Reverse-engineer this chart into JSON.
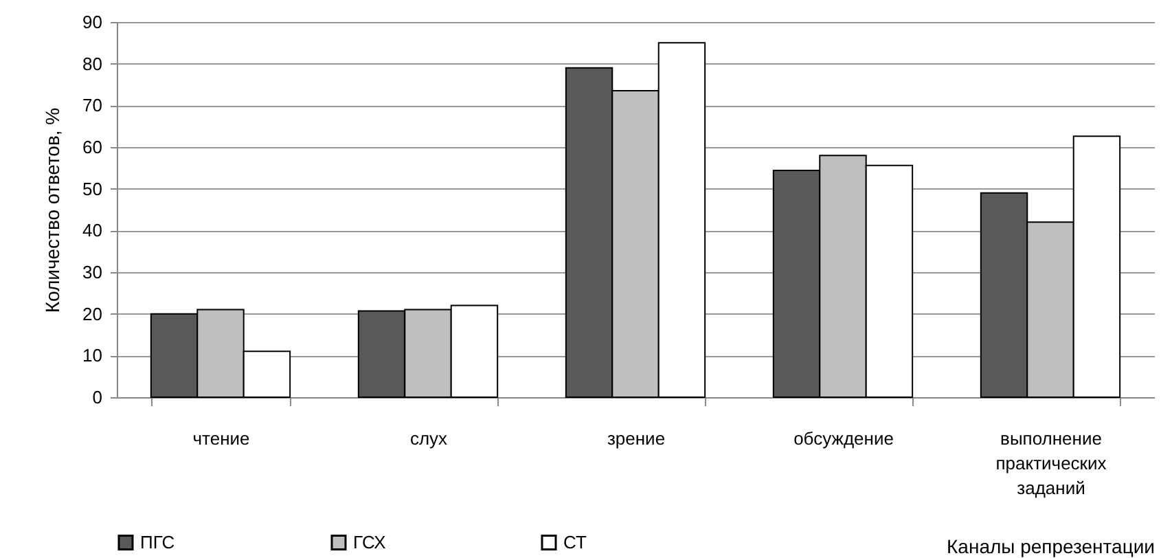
{
  "chart_data": {
    "type": "bar",
    "xlabel": "Каналы репрезентации",
    "ylabel": "Количество ответов, %",
    "categories": [
      "чтение",
      "слух",
      "зрение",
      "обсуждение",
      "выполнение практических заданий"
    ],
    "series": [
      {
        "name": "ПГС",
        "color": "#595959",
        "values": [
          20,
          20.7,
          79,
          54.4,
          49
        ]
      },
      {
        "name": "ГСХ",
        "color": "#bfbfbf",
        "values": [
          21,
          21,
          73.5,
          58,
          42
        ]
      },
      {
        "name": "СТ",
        "color": "#ffffff",
        "values": [
          11,
          22,
          85,
          55.6,
          62.6
        ]
      }
    ],
    "ylim": [
      0,
      90
    ],
    "yticks": [
      0,
      10,
      20,
      30,
      40,
      50,
      60,
      70,
      80,
      90
    ],
    "grid": "y",
    "legend": "bottom left"
  }
}
